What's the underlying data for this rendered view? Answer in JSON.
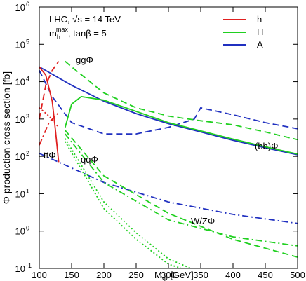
{
  "chart_data": {
    "type": "line",
    "log_y": true,
    "info": {
      "line1": "LHC, √s = 14 TeV",
      "line2": {
        "base": "m",
        "sub": "h",
        "sup": "max",
        "rest": ", tanβ = 5"
      }
    },
    "xlabel": {
      "base": "M",
      "sub": "Φ",
      "rest": " [GeV]"
    },
    "ylabel": "Φ production cross section [fb]",
    "xlim": [
      100,
      500
    ],
    "ylim": [
      0.1,
      1000000
    ],
    "xticks": [
      100,
      150,
      200,
      250,
      300,
      350,
      400,
      450,
      500
    ],
    "yticks": [
      {
        "value": 0.1,
        "label": "10",
        "exponent": "-1"
      },
      {
        "value": 1,
        "label": "10",
        "exponent": "0"
      },
      {
        "value": 10,
        "label": "10",
        "exponent": "1"
      },
      {
        "value": 100,
        "label": "10",
        "exponent": "2"
      },
      {
        "value": 1000,
        "label": "10",
        "exponent": "3"
      },
      {
        "value": 10000,
        "label": "10",
        "exponent": "4"
      },
      {
        "value": 100000,
        "label": "10",
        "exponent": "5"
      },
      {
        "value": 1000000,
        "label": "10",
        "exponent": "6"
      }
    ],
    "legend": [
      {
        "name": "h",
        "color": "#e02020"
      },
      {
        "name": "H",
        "color": "#20d020"
      },
      {
        "name": "A",
        "color": "#2030c0"
      }
    ],
    "annotations": [
      "ggΦ",
      "ttΦ",
      "qqΦ",
      "W/ZΦ",
      "(bb)Φ"
    ],
    "series": [
      {
        "color": "#2030c0",
        "dash": "solid",
        "x": [
          100,
          150,
          200,
          250,
          300,
          350,
          400,
          450,
          500
        ],
        "values": [
          25000,
          8000,
          3000,
          1400,
          750,
          450,
          270,
          170,
          110
        ]
      },
      {
        "color": "#2030c0",
        "dash": "dashed",
        "x": [
          100,
          120,
          150,
          200,
          250,
          300,
          340,
          350,
          400,
          450,
          500
        ],
        "values": [
          20000,
          4000,
          800,
          400,
          400,
          600,
          1000,
          2000,
          1300,
          800,
          550
        ]
      },
      {
        "color": "#2030c0",
        "dash": "dashdot",
        "x": [
          100,
          200,
          300,
          400,
          500
        ],
        "values": [
          120,
          20,
          6,
          2.8,
          1.6
        ]
      },
      {
        "color": "#20d020",
        "dash": "solid",
        "x": [
          140,
          150,
          165,
          200,
          250,
          300,
          350,
          400,
          450,
          500
        ],
        "values": [
          600,
          2500,
          4000,
          3200,
          1600,
          800,
          480,
          290,
          180,
          115
        ]
      },
      {
        "color": "#20d020",
        "dash": "dashed",
        "x": [
          140,
          150,
          200,
          250,
          300,
          350,
          400,
          450,
          500
        ],
        "values": [
          35000,
          25000,
          5000,
          2000,
          1200,
          900,
          700,
          450,
          280
        ]
      },
      {
        "color": "#20d020",
        "dash": "dashed",
        "x": [
          140,
          200,
          300,
          400,
          500
        ],
        "values": [
          500,
          30,
          3,
          0.6,
          0.2
        ]
      },
      {
        "color": "#20d020",
        "dash": "dashdot",
        "x": [
          140,
          200,
          300,
          400,
          500
        ],
        "values": [
          400,
          20,
          2,
          0.7,
          0.4
        ]
      },
      {
        "color": "#20d020",
        "dash": "dotted",
        "x": [
          140,
          200,
          250,
          300,
          335
        ],
        "values": [
          300,
          6,
          0.9,
          0.18,
          0.1
        ]
      },
      {
        "color": "#20d020",
        "dash": "dotted",
        "x": [
          140,
          200,
          250,
          300,
          320
        ],
        "values": [
          250,
          4,
          0.6,
          0.13,
          0.1
        ]
      },
      {
        "color": "#e02020",
        "dash": "solid",
        "x": [
          100,
          110,
          120,
          125,
          130
        ],
        "values": [
          25000,
          15000,
          3000,
          500,
          70
        ]
      },
      {
        "color": "#e02020",
        "dash": "dashed",
        "x": [
          100,
          110,
          120,
          130
        ],
        "values": [
          1000,
          8000,
          20000,
          35000
        ]
      },
      {
        "color": "#e02020",
        "dash": "dotted",
        "x": [
          100,
          115,
          130
        ],
        "values": [
          2000,
          1200,
          600
        ]
      },
      {
        "color": "#e02020",
        "dash": "dashdot",
        "x": [
          100,
          115,
          130
        ],
        "values": [
          200,
          800,
          1500
        ]
      }
    ]
  }
}
